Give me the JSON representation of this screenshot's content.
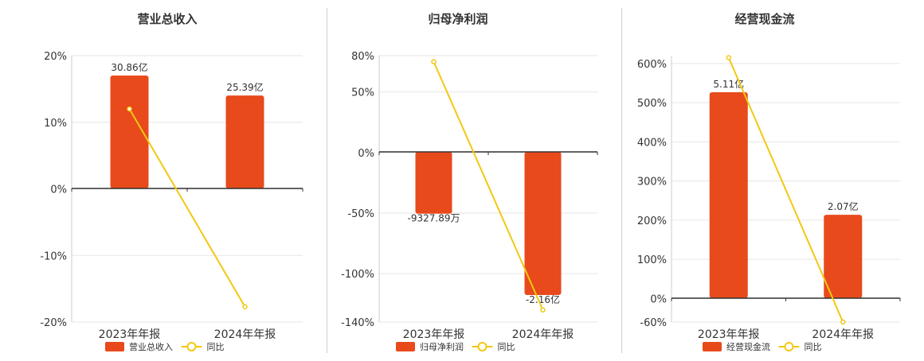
{
  "legend_yoy_label": "同比",
  "colors": {
    "bar": "#E84A1C",
    "line": "#F2C811",
    "axis": "#333333",
    "grid": "#e6e6e6",
    "text": "#333333"
  },
  "chart_data": [
    {
      "type": "bar",
      "title": "营业总收入",
      "categories": [
        "2023年年报",
        "2024年年报"
      ],
      "series": [
        {
          "name": "营业总收入",
          "kind": "bar",
          "axis": "amount",
          "values": [
            30.86,
            25.39
          ],
          "labels": [
            "30.86亿",
            "25.39亿"
          ]
        },
        {
          "name": "同比",
          "kind": "line",
          "axis": "percent",
          "values": [
            12,
            -17.7
          ]
        }
      ],
      "y_percent_ticks": [
        20,
        10,
        0,
        -10,
        -20
      ],
      "y_percent_tick_labels": [
        "20%",
        "10%",
        "0%",
        "-10%",
        "-20%"
      ],
      "y_percent_range": [
        -20,
        20
      ],
      "grid": true,
      "legend": "bottom"
    },
    {
      "type": "bar",
      "title": "归母净利润",
      "categories": [
        "2023年年报",
        "2024年年报"
      ],
      "series": [
        {
          "name": "归母净利润",
          "kind": "bar",
          "axis": "amount",
          "values": [
            -0.932789,
            -2.16
          ],
          "labels": [
            "-9327.89万",
            "-2.16亿"
          ]
        },
        {
          "name": "同比",
          "kind": "line",
          "axis": "percent",
          "values": [
            75,
            -130
          ]
        }
      ],
      "y_percent_ticks": [
        80,
        50,
        0,
        -50,
        -100,
        -140
      ],
      "y_percent_tick_labels": [
        "80%",
        "50%",
        "0%",
        "-50%",
        "-100%",
        "-140%"
      ],
      "y_percent_range": [
        -140,
        80
      ],
      "grid": true,
      "legend": "bottom"
    },
    {
      "type": "bar",
      "title": "经营现金流",
      "categories": [
        "2023年年报",
        "2024年年报"
      ],
      "series": [
        {
          "name": "经营现金流",
          "kind": "bar",
          "axis": "amount",
          "values": [
            5.11,
            2.07
          ],
          "labels": [
            "5.11亿",
            "2.07亿"
          ]
        },
        {
          "name": "同比",
          "kind": "line",
          "axis": "percent",
          "values": [
            615,
            -60
          ]
        }
      ],
      "y_percent_ticks": [
        600,
        500,
        400,
        300,
        200,
        100,
        0,
        -60
      ],
      "y_percent_tick_labels": [
        "600%",
        "500%",
        "400%",
        "300%",
        "200%",
        "100%",
        "0%",
        "-60%"
      ],
      "y_percent_range": [
        -60,
        620
      ],
      "grid": true,
      "legend": "bottom"
    }
  ]
}
